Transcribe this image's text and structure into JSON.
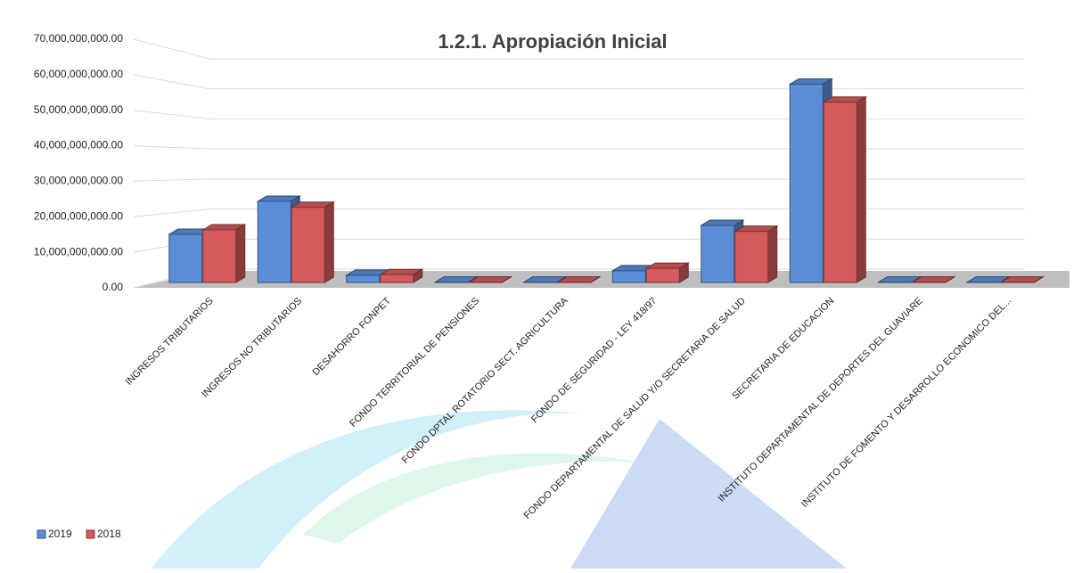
{
  "chart_data": {
    "type": "bar3d",
    "title": "1.2.1. Apropiación Inicial",
    "categories": [
      "INGRESOS TRIBUTARIOS",
      "INGRESOS NO TRIBUTARIOS",
      "DESAHORRO FONPET",
      "FONDO TERRITORIAL DE PENSIONES",
      "FONDO DPTAL ROTATORIO SECT. AGRICULTURA",
      "FONDO DE SEGURIDAD - LEY 418/97",
      "FONDO DEPARTAMENTAL DE SALUD Y/O SECRETARIA DE SALUD",
      "SECRETARIA DE EDUCACION",
      "INSTITUTO DEPARTAMENTAL DE DEPORTES DEL GUAVIARE",
      "INSTITUTO DE FOMENTO Y DESARROLLO ECONOMICO DEL..."
    ],
    "series": [
      {
        "name": "2019",
        "color": "#5b8ed6",
        "values": [
          16000000000,
          27000000000,
          2400000000,
          100000000,
          100000000,
          3900000000,
          19000000000,
          66000000000,
          100000000,
          100000000
        ]
      },
      {
        "name": "2018",
        "color": "#d45b5b",
        "values": [
          17500000000,
          25000000000,
          2600000000,
          100000000,
          100000000,
          4700000000,
          17000000000,
          60000000000,
          100000000,
          100000000
        ]
      }
    ],
    "ylim": [
      0,
      70000000000
    ],
    "yticks": [
      {
        "value": 0,
        "label": "0.00"
      },
      {
        "value": 10000000000,
        "label": "10,000,000,000.00"
      },
      {
        "value": 20000000000,
        "label": "20,000,000,000.00"
      },
      {
        "value": 30000000000,
        "label": "30,000,000,000.00"
      },
      {
        "value": 40000000000,
        "label": "40,000,000,000.00"
      },
      {
        "value": 50000000000,
        "label": "50,000,000,000.00"
      },
      {
        "value": 60000000000,
        "label": "60,000,000,000.00"
      },
      {
        "value": 70000000000,
        "label": "70,000,000,000.00"
      }
    ],
    "grid": true,
    "legend": "bottom-left"
  }
}
